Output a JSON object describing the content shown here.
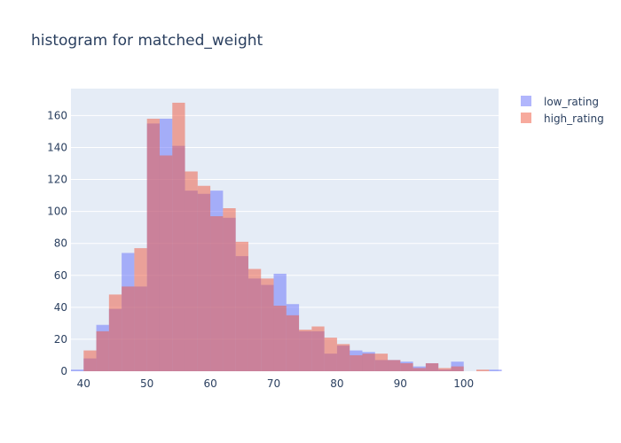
{
  "chart_data": {
    "type": "bar",
    "title": "histogram for matched_weight",
    "xlabel": "",
    "ylabel": "",
    "xlim": [
      38,
      105.5
    ],
    "ylim": [
      0,
      176.84
    ],
    "x_ticks": [
      40,
      50,
      60,
      70,
      80,
      90,
      100
    ],
    "y_ticks": [
      0,
      20,
      40,
      60,
      80,
      100,
      120,
      140,
      160
    ],
    "grid": true,
    "legend_position": "top-right",
    "bin_width": 2,
    "bin_starts": [
      38,
      40,
      42,
      44,
      46,
      48,
      50,
      52,
      54,
      56,
      58,
      60,
      62,
      64,
      66,
      68,
      70,
      72,
      74,
      76,
      78,
      80,
      82,
      84,
      86,
      88,
      90,
      92,
      94,
      96,
      98,
      100,
      102,
      104
    ],
    "series": [
      {
        "name": "low_rating",
        "color": "#636efa",
        "values": [
          1,
          8,
          29,
          39,
          74,
          53,
          155,
          158,
          141,
          113,
          111,
          113,
          96,
          72,
          58,
          54,
          61,
          42,
          25,
          25,
          11,
          16,
          13,
          12,
          7,
          7,
          6,
          3,
          5,
          1,
          6,
          0,
          0,
          1
        ]
      },
      {
        "name": "high_rating",
        "color": "#ef553b",
        "values": [
          0,
          13,
          25,
          48,
          53,
          77,
          158,
          135,
          168,
          125,
          116,
          97,
          102,
          81,
          64,
          58,
          41,
          35,
          26,
          28,
          21,
          17,
          10,
          11,
          11,
          7,
          5,
          2,
          5,
          2,
          3,
          0,
          1,
          0
        ]
      }
    ]
  },
  "colors": {
    "plot_background": "#e5ecf6",
    "text": "#2a3f5f",
    "gridline": "#ffffff"
  }
}
